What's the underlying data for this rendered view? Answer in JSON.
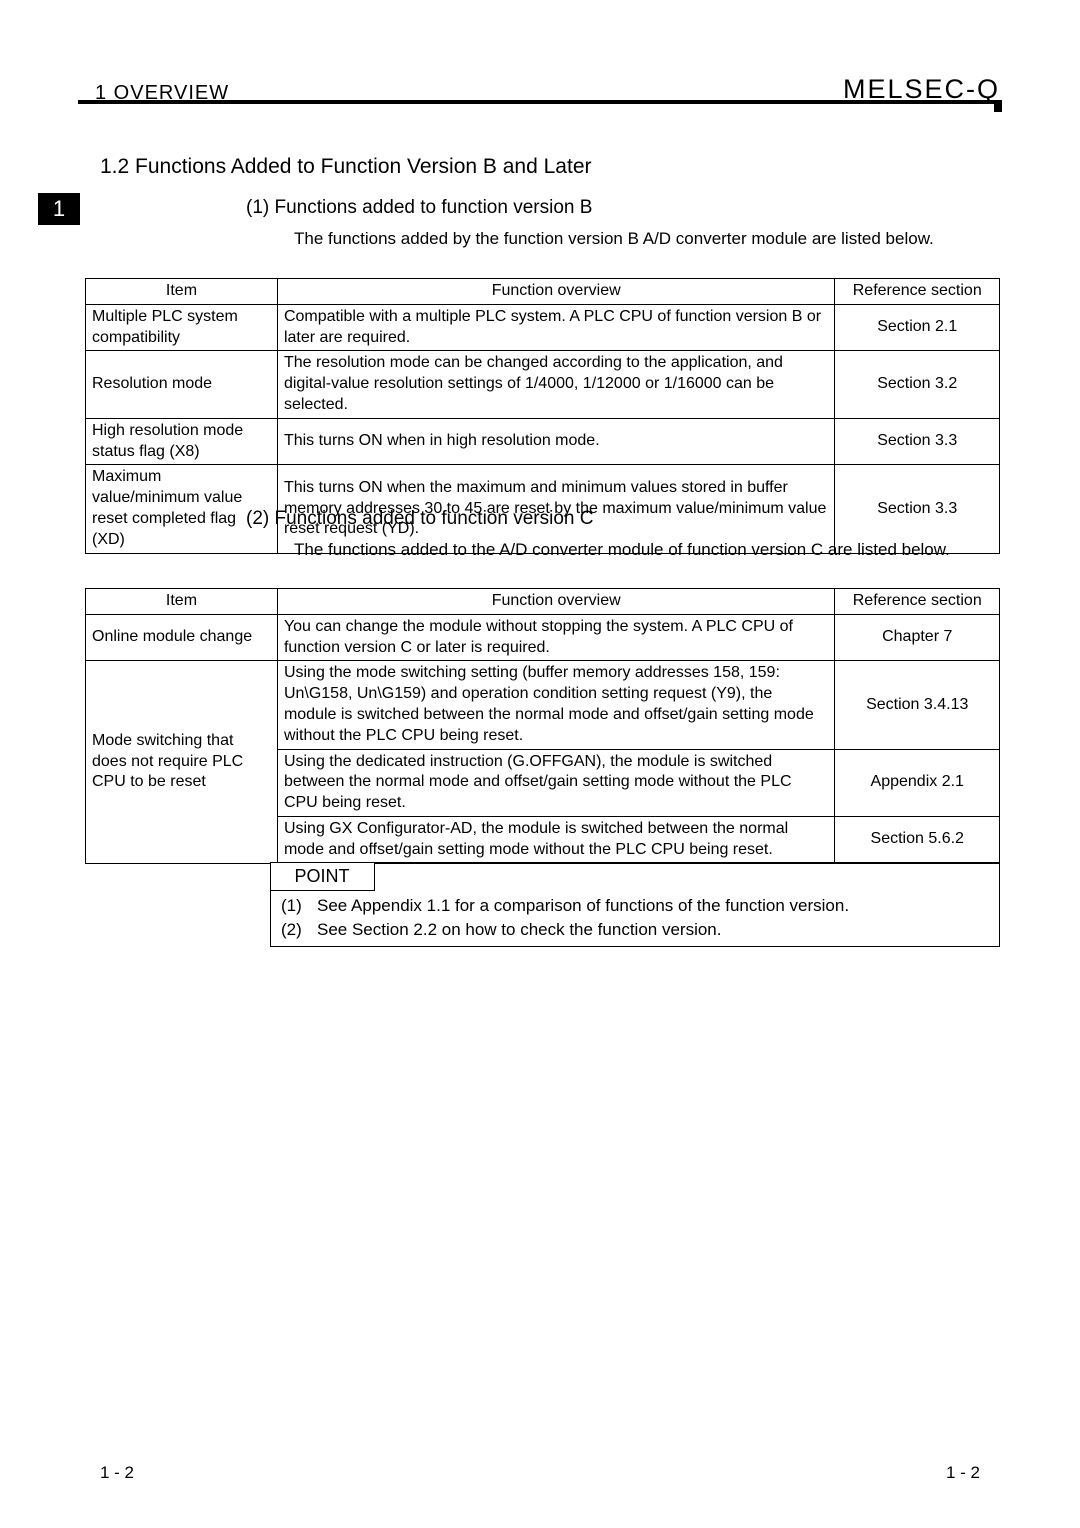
{
  "header": {
    "left": "1   OVERVIEW",
    "right": "MELSEC-Q"
  },
  "section_title": "1.2 Functions Added to Function Version B and Later",
  "tab_marker": "1",
  "sub1": {
    "heading": "(1)   Functions added to function version B",
    "text": "The functions added by the function version B A/D converter module are listed below."
  },
  "table1": {
    "headers": {
      "item": "Item",
      "overview": "Function overview",
      "ref": "Reference section"
    },
    "rows": [
      {
        "item": "Multiple PLC system compatibility",
        "overview": "Compatible with a multiple PLC system. A PLC CPU of function version B or later are required.",
        "ref": "Section 2.1"
      },
      {
        "item": "Resolution mode",
        "overview": "The resolution mode can be changed according to the application, and digital-value resolution settings of 1/4000, 1/12000 or 1/16000 can be selected.",
        "ref": "Section 3.2"
      },
      {
        "item": "High resolution mode status flag (X8)",
        "overview": "This turns ON when in high resolution mode.",
        "ref": "Section 3.3"
      },
      {
        "item": "Maximum value/minimum value reset completed flag (XD)",
        "overview": "This turns ON when the maximum and minimum values stored in buffer memory addresses 30 to 45 are reset by the maximum value/minimum value reset request (YD).",
        "ref": "Section 3.3"
      }
    ]
  },
  "sub2": {
    "heading": "(2)   Functions added to function version C",
    "text": "The functions added to the A/D converter module of function version C are listed below."
  },
  "table2": {
    "headers": {
      "item": "Item",
      "overview": "Function overview",
      "ref": "Reference section"
    },
    "row1": {
      "item": "Online module change",
      "overview": "You can change the module without stopping the system. A PLC CPU of function version C or later is required.",
      "ref": "Chapter 7"
    },
    "group_item": "Mode switching that does not require PLC CPU to be reset",
    "group_rows": [
      {
        "overview": "Using the mode switching setting (buffer memory addresses 158, 159: Un\\G158, Un\\G159) and operation condition setting request (Y9), the module is switched between the normal mode and offset/gain setting mode without the PLC CPU being reset.",
        "ref": "Section 3.4.13"
      },
      {
        "overview": "Using the dedicated instruction (G.OFFGAN), the module is switched between the normal mode and offset/gain setting mode without the PLC CPU being reset.",
        "ref": "Appendix 2.1"
      },
      {
        "overview": "Using GX Configurator-AD, the module is switched between the normal mode and offset/gain setting mode without the PLC CPU being reset.",
        "ref": "Section 5.6.2"
      }
    ]
  },
  "point": {
    "label": "POINT",
    "lines": [
      {
        "num": "(1)",
        "text": "See Appendix 1.1 for a comparison of functions of the function version."
      },
      {
        "num": "(2)",
        "text": "See Section 2.2 on how to check the function version."
      }
    ]
  },
  "footer": {
    "left": "1 - 2",
    "right": "1 - 2"
  }
}
